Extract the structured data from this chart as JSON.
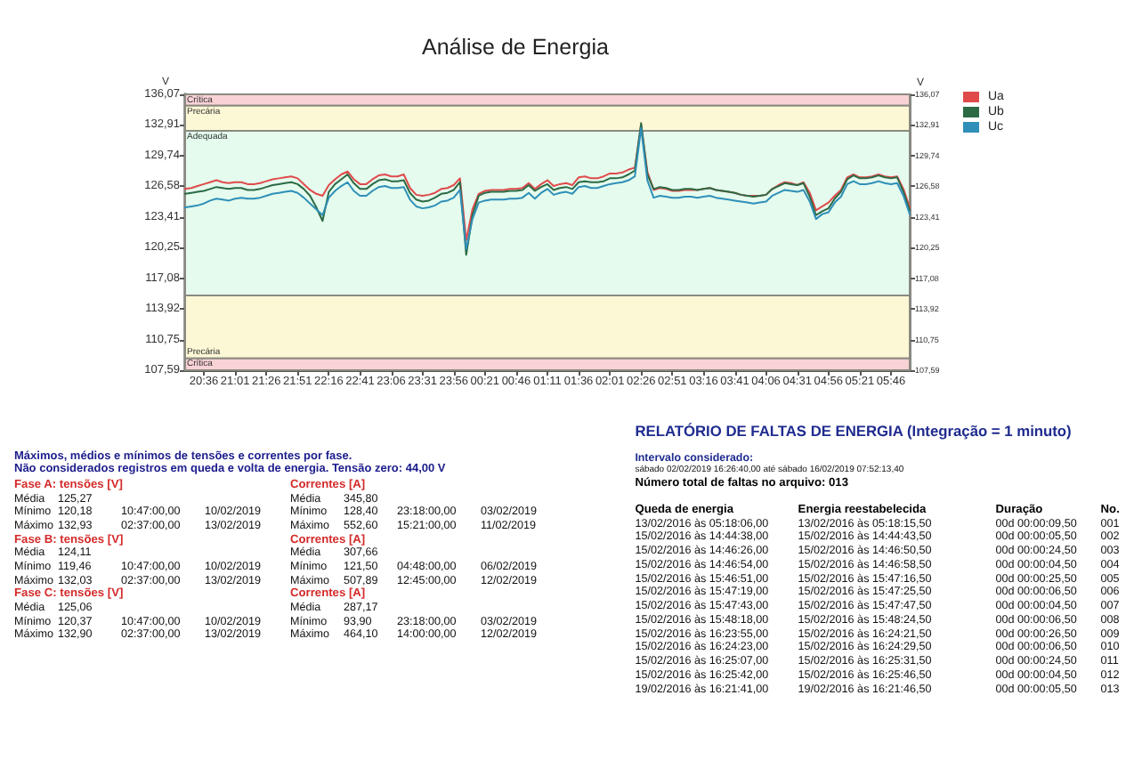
{
  "chart_data": [
    {
      "type": "line",
      "title": "Análise de Energia",
      "ylabel": "V",
      "y2label": "V",
      "legend": "top right",
      "categories": [
        null,
        null,
        null,
        "20:36",
        null,
        null,
        null,
        null,
        "21:01",
        null,
        null,
        null,
        null,
        "21:26",
        null,
        null,
        null,
        null,
        "21:51",
        null,
        null,
        null,
        null,
        "22:16",
        null,
        null,
        null,
        null,
        "22:41",
        null,
        null,
        null,
        null,
        "23:06",
        null,
        null,
        null,
        null,
        "23:31",
        null,
        null,
        null,
        null,
        "23:56",
        null,
        null,
        null,
        null,
        "00:21",
        null,
        null,
        null,
        null,
        "00:46",
        null,
        null,
        null,
        null,
        "01:11",
        null,
        null,
        null,
        null,
        "01:36",
        null,
        null,
        null,
        null,
        "02:01",
        null,
        null,
        null,
        null,
        "02:26",
        null,
        null,
        null,
        null,
        "02:51",
        null,
        null,
        null,
        null,
        "03:16",
        null,
        null,
        null,
        null,
        "03:41",
        null,
        null,
        null,
        null,
        "04:06",
        null,
        null,
        null,
        null,
        "04:31",
        null,
        null,
        null,
        null,
        "04:56",
        null,
        null,
        null,
        null,
        "05:21",
        null,
        null,
        null,
        null,
        "05:46",
        null,
        null,
        null
      ],
      "series": [
        {
          "name": "Ua",
          "color": "#e04a4a",
          "values": [
            126.3,
            126.4,
            126.6,
            126.8,
            127.0,
            127.2,
            127.0,
            126.9,
            127.0,
            127.0,
            126.8,
            126.8,
            126.9,
            127.1,
            127.3,
            127.4,
            127.5,
            127.6,
            127.4,
            126.8,
            126.2,
            125.8,
            125.6,
            126.7,
            127.3,
            127.8,
            128.1,
            127.3,
            126.8,
            126.8,
            127.3,
            127.7,
            127.8,
            127.6,
            127.6,
            127.8,
            126.4,
            125.7,
            125.6,
            125.7,
            125.9,
            126.3,
            126.4,
            126.7,
            127.4,
            121.0,
            124.2,
            125.8,
            126.1,
            126.2,
            126.2,
            126.2,
            126.3,
            126.3,
            126.4,
            126.9,
            126.3,
            126.8,
            127.2,
            126.6,
            126.8,
            126.9,
            126.7,
            127.5,
            127.6,
            127.4,
            127.4,
            127.6,
            127.9,
            127.9,
            128.0,
            128.3,
            128.5,
            132.9,
            128.1,
            126.2,
            126.4,
            126.3,
            126.1,
            126.1,
            126.2,
            126.2,
            126.2,
            126.3,
            126.4,
            126.2,
            126.1,
            126.0,
            125.9,
            125.7,
            125.6,
            125.6,
            125.6,
            125.7,
            126.3,
            126.7,
            127.0,
            126.9,
            126.7,
            127.0,
            125.9,
            124.1,
            124.5,
            124.9,
            125.6,
            126.2,
            127.5,
            127.8,
            127.5,
            127.5,
            127.6,
            127.8,
            127.6,
            127.5,
            127.6,
            126.3,
            124.4
          ]
        },
        {
          "name": "Ub",
          "color": "#2c6a45",
          "values": [
            125.8,
            125.9,
            126.0,
            126.1,
            126.3,
            126.5,
            126.4,
            126.3,
            126.4,
            126.4,
            126.2,
            126.2,
            126.3,
            126.5,
            126.7,
            126.8,
            126.9,
            127.0,
            126.8,
            126.3,
            125.6,
            124.4,
            123.0,
            126.0,
            126.8,
            127.3,
            127.8,
            126.9,
            126.3,
            126.3,
            126.8,
            127.2,
            127.3,
            127.1,
            127.1,
            127.2,
            125.9,
            125.2,
            125.0,
            125.1,
            125.4,
            125.8,
            125.9,
            126.2,
            127.0,
            119.5,
            123.6,
            125.6,
            125.9,
            126.0,
            126.0,
            126.0,
            126.1,
            126.1,
            126.2,
            126.7,
            126.1,
            126.5,
            126.8,
            126.2,
            126.4,
            126.5,
            126.3,
            127.0,
            127.1,
            127.0,
            127.0,
            127.1,
            127.4,
            127.4,
            127.5,
            127.8,
            128.2,
            133.1,
            127.8,
            126.3,
            126.5,
            126.4,
            126.2,
            126.2,
            126.3,
            126.3,
            126.2,
            126.3,
            126.4,
            126.2,
            126.1,
            126.0,
            125.9,
            125.7,
            125.6,
            125.5,
            125.6,
            125.7,
            126.3,
            126.6,
            126.9,
            126.8,
            126.7,
            126.9,
            125.5,
            123.6,
            124.0,
            124.3,
            125.3,
            126.0,
            127.3,
            127.7,
            127.4,
            127.4,
            127.5,
            127.7,
            127.5,
            127.4,
            127.5,
            126.0,
            124.1
          ]
        },
        {
          "name": "Uc",
          "color": "#2f8fb8",
          "values": [
            124.4,
            124.5,
            124.6,
            124.8,
            125.1,
            125.3,
            125.2,
            125.1,
            125.3,
            125.4,
            125.3,
            125.3,
            125.4,
            125.6,
            125.8,
            125.9,
            126.0,
            126.1,
            125.9,
            125.4,
            124.8,
            124.2,
            123.6,
            125.4,
            126.1,
            126.6,
            127.0,
            126.1,
            125.6,
            125.6,
            126.1,
            126.5,
            126.6,
            126.4,
            126.4,
            126.5,
            125.2,
            124.5,
            124.3,
            124.4,
            124.6,
            125.0,
            125.1,
            125.4,
            126.2,
            120.1,
            123.2,
            124.9,
            125.1,
            125.2,
            125.2,
            125.2,
            125.3,
            125.3,
            125.4,
            125.9,
            125.3,
            125.9,
            126.3,
            125.7,
            125.9,
            126.0,
            125.8,
            126.5,
            126.6,
            126.4,
            126.4,
            126.6,
            126.8,
            126.9,
            127.0,
            127.2,
            127.6,
            132.6,
            127.2,
            125.4,
            125.6,
            125.5,
            125.4,
            125.4,
            125.5,
            125.5,
            125.4,
            125.5,
            125.6,
            125.4,
            125.3,
            125.2,
            125.1,
            125.0,
            124.9,
            124.8,
            124.9,
            125.0,
            125.6,
            125.9,
            126.2,
            126.1,
            126.0,
            126.2,
            125.0,
            123.2,
            123.7,
            123.9,
            124.9,
            125.5,
            126.8,
            127.1,
            126.8,
            126.8,
            126.9,
            127.1,
            126.9,
            126.8,
            126.9,
            125.6,
            123.7
          ]
        }
      ],
      "ylim": [
        107.59,
        136.07
      ],
      "yticks": [
        {
          "value": 107.59,
          "label": "107,59"
        },
        {
          "value": 110.75,
          "label": "110,75"
        },
        {
          "value": 113.92,
          "label": "113,92"
        },
        {
          "value": 117.08,
          "label": "117,08"
        },
        {
          "value": 120.25,
          "label": "120,25"
        },
        {
          "value": 123.41,
          "label": "123,41"
        },
        {
          "value": 126.58,
          "label": "126,58"
        },
        {
          "value": 129.74,
          "label": "129,74"
        },
        {
          "value": 132.91,
          "label": "132,91"
        },
        {
          "value": 136.07,
          "label": "136,07"
        }
      ],
      "y2lim": [
        107.59,
        136.07
      ],
      "y2ticks": [
        {
          "value": 107.59,
          "label": "107,59"
        },
        {
          "value": 110.75,
          "label": "110,75"
        },
        {
          "value": 113.92,
          "label": "113,92"
        },
        {
          "value": 117.08,
          "label": "117,08"
        },
        {
          "value": 120.25,
          "label": "120,25"
        },
        {
          "value": 123.41,
          "label": "123,41"
        },
        {
          "value": 126.58,
          "label": "126,58"
        },
        {
          "value": 129.74,
          "label": "129,74"
        },
        {
          "value": 132.91,
          "label": "132,91"
        },
        {
          "value": 136.07,
          "label": "136,07"
        }
      ],
      "bands": [
        {
          "axis": "y",
          "from": 134.9,
          "to": 136.07,
          "label": "Crítica",
          "color": "#f9d2d6"
        },
        {
          "axis": "y",
          "from": 132.3,
          "to": 134.9,
          "label": "Precária",
          "color": "#fcf8d6"
        },
        {
          "axis": "y",
          "from": 115.3,
          "to": 132.3,
          "label": "Adequada",
          "color": "#e4fbee"
        },
        {
          "axis": "y",
          "from": 108.8,
          "to": 115.3,
          "label": "Precária",
          "color": "#fcf8d6"
        },
        {
          "axis": "y",
          "from": 107.59,
          "to": 108.8,
          "label": "Crítica",
          "color": "#f9d2d6"
        }
      ]
    },
    {
      "type": "other",
      "title": "Máximos, médios e mínimos de tensões e correntes por fase.",
      "subtitle": "Não considerados registros em queda e volta de energia. Tensão zero: 44,00 V",
      "annotations": [
        "Fase A: tensões [V]\t\t\t\tCorrentes [A]",
        "Média\t125,27\t\t\tMédia\t345,80",
        "Mínimo\t120,18\t10:47:00,00\t10/02/2019\tMínimo\t128,40\t23:18:00,00\t03/02/2019",
        "Máximo\t132,93\t02:37:00,00\t13/02/2019\tMáximo\t552,60\t15:21:00,00\t11/02/2019",
        "Fase B: tensões [V]\t\t\t\tCorrentes [A]",
        "Média\t124,11\t\t\tMédia\t307,66",
        "Mínimo\t119,46\t10:47:00,00\t10/02/2019\tMínimo\t121,50\t04:48:00,00\t06/02/2019",
        "Máximo\t132,03\t02:37:00,00\t13/02/2019\tMáximo\t507,89\t12:45:00,00\t12/02/2019",
        "Fase C: tensões [V]\t\t\t\tCorrentes [A]",
        "Média\t125,06\t\t\tMédia\t287,17",
        "Mínimo\t120,37\t10:47:00,00\t10/02/2019\tMínimo\t93,90\t23:18:00,00\t03/02/2019",
        "Máximo\t132,90\t02:37:00,00\t13/02/2019\tMáximo\t464,10\t14:00:00,00\t12/02/2019"
      ]
    },
    {
      "type": "other",
      "title": "RELATÓRIO DE FALTAS DE ENERGIA (Integração = 1 minuto)",
      "subtitle": "Intervalo considerado:",
      "annotations": [
        "sábado 02/02/2019 16:26:40,00 até sábado 16/02/2019 07:52:13,40",
        "Número total de faltas no arquivo: 013",
        "Queda de energia\tEnergia reestabelecida\tDuração\tNo.",
        "13/02/2016 às 05:18:06,00\t13/02/2016 às 05:18:15,50\t00d 00:00:09,50\t001",
        "15/02/2016 às 14:44:38,00\t15/02/2016 às 14:44:43,50\t00d 00:00:05,50\t002",
        "15/02/2016 às 14:46:26,00\t15/02/2016 às 14:46:50,50\t00d 00:00:24,50\t003",
        "15/02/2016 às 14:46:54,00\t15/02/2016 às 14:46:58,50\t00d 00:00:04,50\t004",
        "15/02/2016 às 15:46:51,00\t15/02/2016 às 15:47:16,50\t00d 00:00:25,50\t005",
        "15/02/2016 às 15:47:19,00\t15/02/2016 às 15:47:25,50\t00d 00:00:06,50\t006",
        "15/02/2016 às 15:47:43,00\t15/02/2016 às 15:47:47,50\t00d 00:00:04,50\t007",
        "15/02/2016 às 15:48:18,00\t15/02/2016 às 15:48:24,50\t00d 00:00:06,50\t008",
        "15/02/2016 às 16:23:55,00\t15/02/2016 às 16:24:21,50\t00d 00:00:26,50\t009",
        "15/02/2016 às 16:24:23,00\t15/02/2016 às 16:24:29,50\t00d 00:00:06,50\t010",
        "15/02/2016 às 16:25:07,00\t15/02/2016 às 16:25:31,50\t00d 00:00:24,50\t011",
        "15/02/2016 às 16:25:42,00\t15/02/2016 às 16:25:46,50\t00d 00:00:04,50\t012",
        "19/02/2016 às 16:21:41,00\t19/02/2016 às 16:21:46,50\t00d 00:00:05,50\t013"
      ]
    }
  ]
}
